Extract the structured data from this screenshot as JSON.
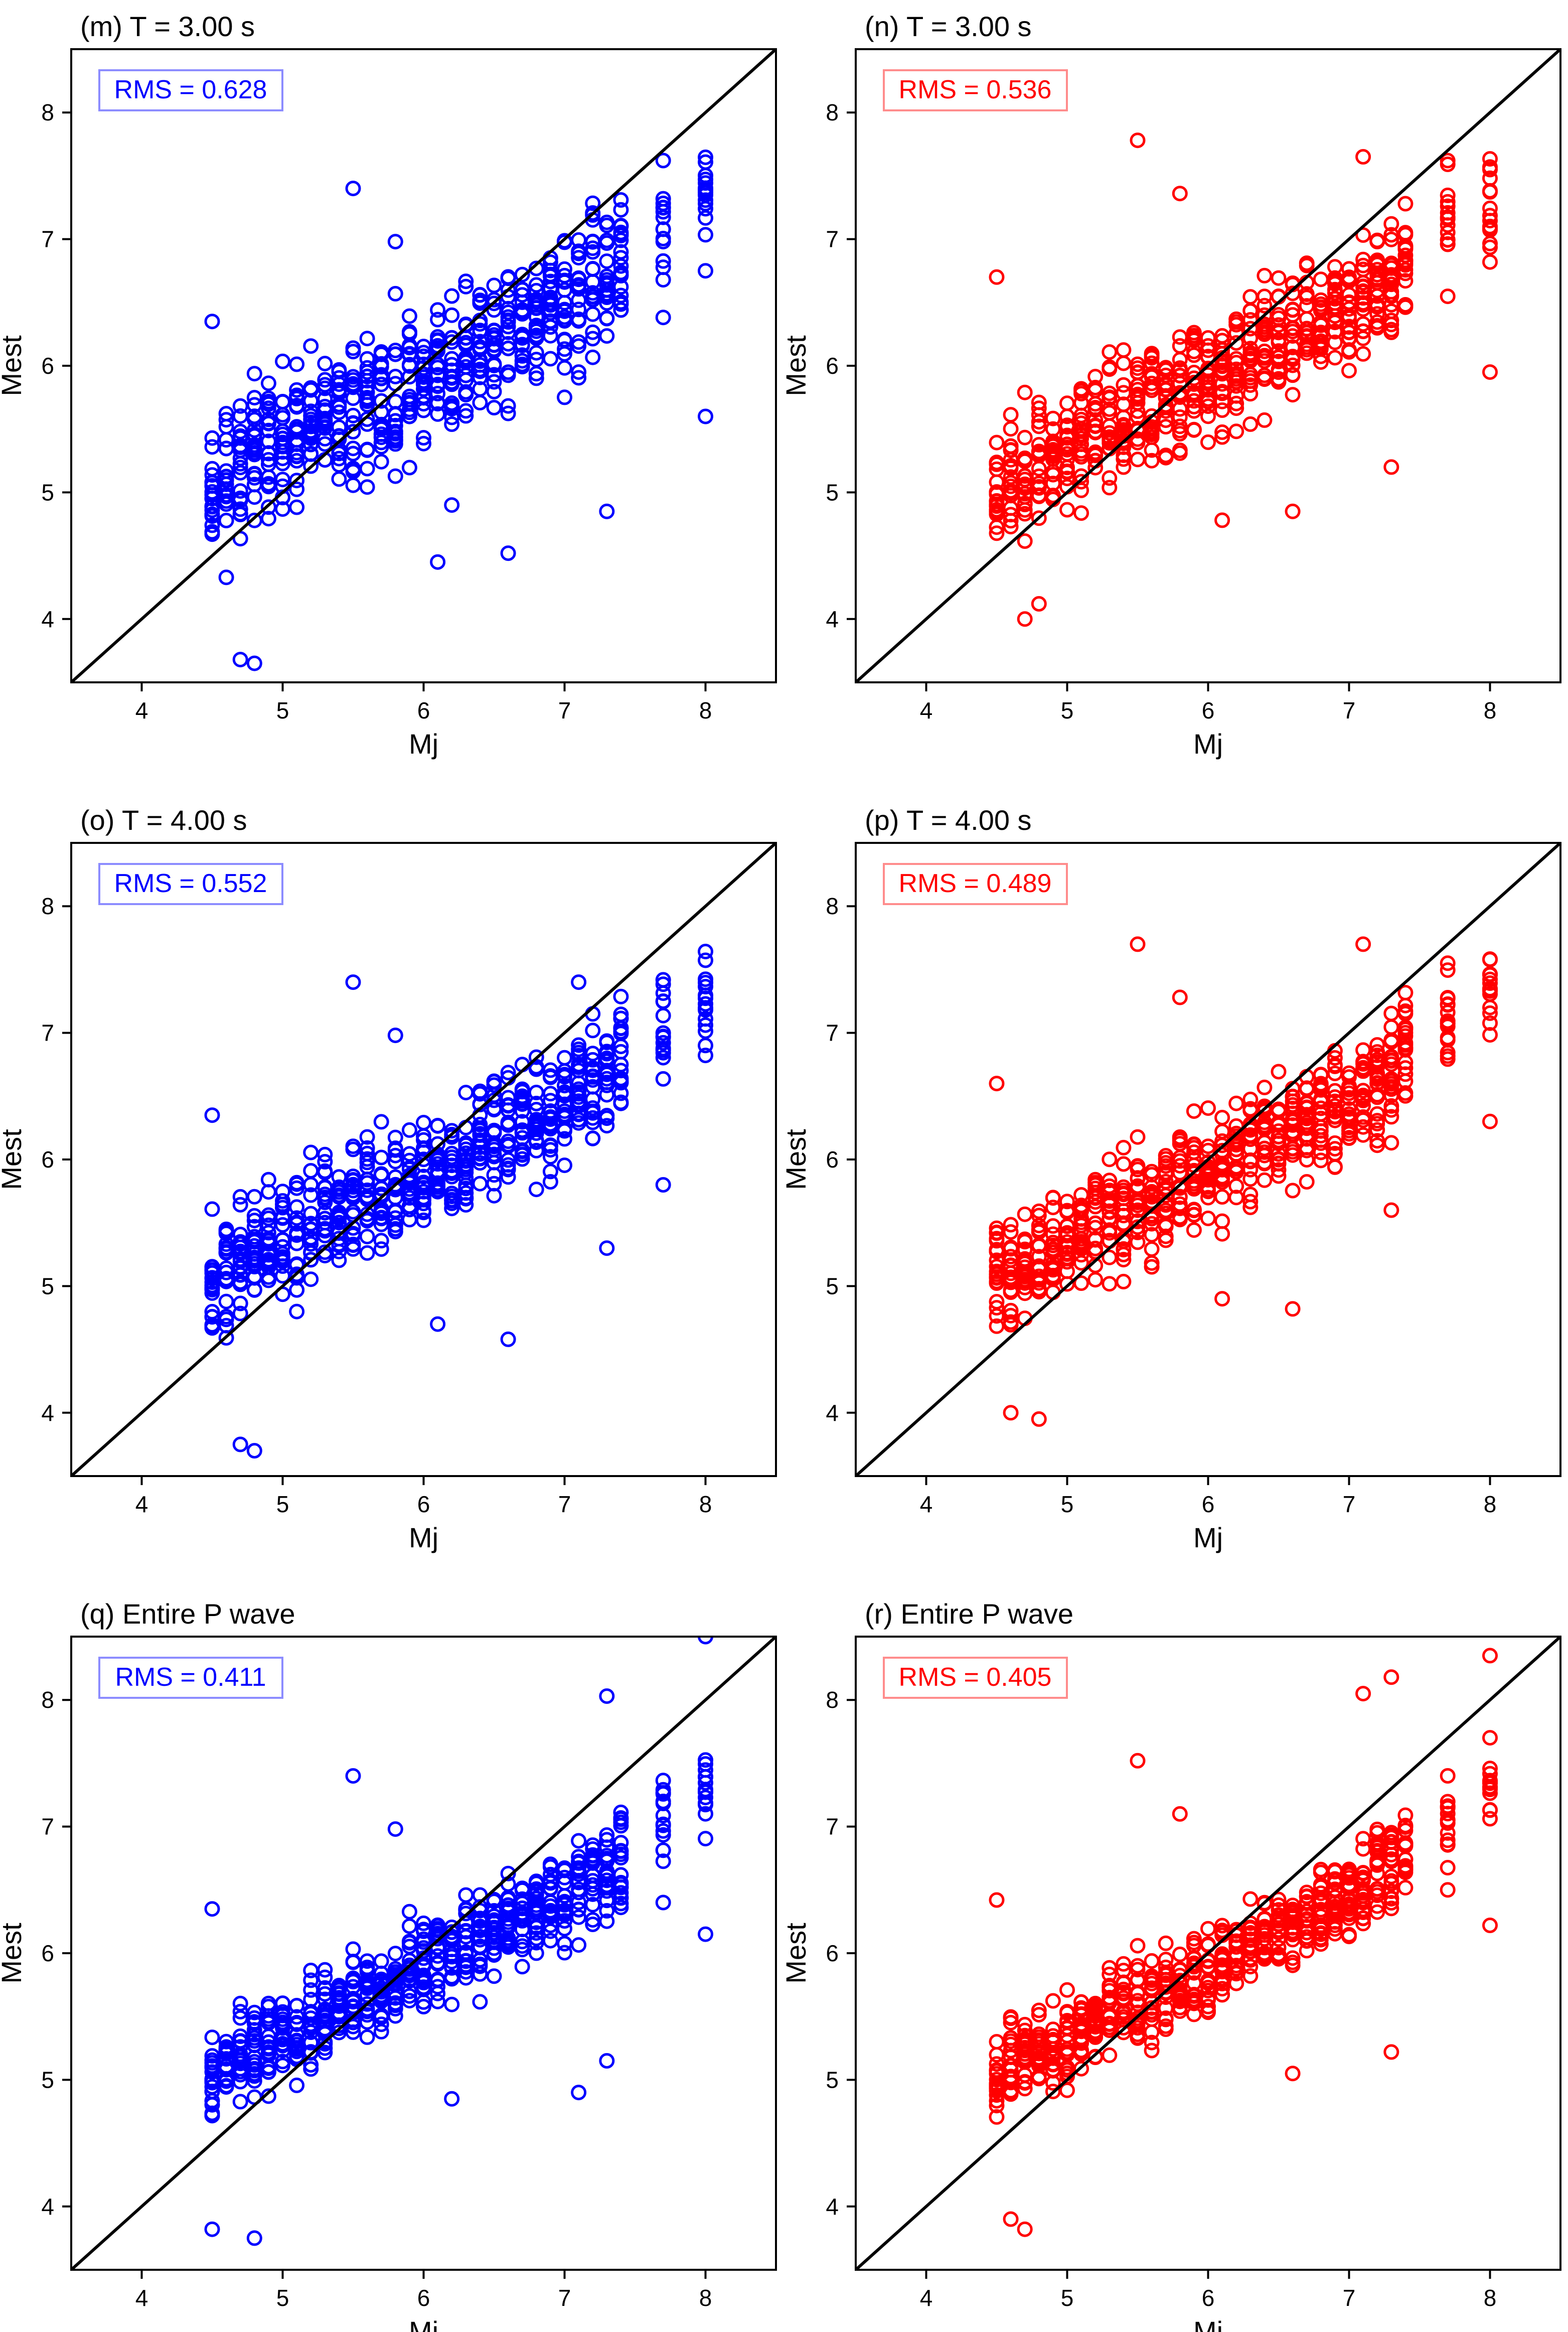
{
  "figure": {
    "xlabel": "Mj",
    "ylabel": "Mest",
    "colors": {
      "blue": "#0000ff",
      "red": "#ff0000",
      "line": "#000000"
    }
  },
  "chart_data": [
    {
      "id": "m",
      "type": "scatter",
      "title": "(m) T = 3.00 s",
      "annotation": "RMS = 0.628",
      "color": "#0000ff",
      "xlabel": "Mj",
      "ylabel": "Mest",
      "xlim": [
        3.5,
        8.5
      ],
      "ylim": [
        3.5,
        8.5
      ],
      "xticks": [
        4,
        5,
        6,
        7,
        8
      ],
      "yticks": [
        4,
        5,
        6,
        7,
        8
      ],
      "reference_line": "y = x",
      "seed": 11,
      "noise": 0.6,
      "extremes": [
        [
          5.5,
          7.4
        ],
        [
          4.5,
          6.35
        ],
        [
          4.7,
          3.68
        ],
        [
          4.8,
          3.65
        ],
        [
          7.7,
          7.25
        ],
        [
          8.0,
          6.75
        ],
        [
          8.0,
          5.6
        ],
        [
          7.3,
          4.85
        ],
        [
          6.6,
          4.52
        ],
        [
          6.1,
          4.45
        ],
        [
          5.8,
          6.98
        ],
        [
          6.2,
          4.9
        ]
      ]
    },
    {
      "id": "n",
      "type": "scatter",
      "title": "(n) T = 3.00 s",
      "annotation": "RMS = 0.536",
      "color": "#ff0000",
      "xlabel": "Mj",
      "ylabel": "Mest",
      "xlim": [
        3.5,
        8.5
      ],
      "ylim": [
        3.5,
        8.5
      ],
      "xticks": [
        4,
        5,
        6,
        7,
        8
      ],
      "yticks": [
        4,
        5,
        6,
        7,
        8
      ],
      "reference_line": "y = x",
      "seed": 23,
      "noise": 0.5,
      "extremes": [
        [
          5.5,
          7.78
        ],
        [
          5.8,
          7.36
        ],
        [
          4.5,
          6.7
        ],
        [
          4.7,
          4.0
        ],
        [
          7.7,
          7.62
        ],
        [
          8.0,
          7.1
        ],
        [
          8.0,
          5.95
        ],
        [
          7.3,
          5.2
        ],
        [
          6.6,
          4.85
        ],
        [
          6.1,
          4.78
        ],
        [
          7.1,
          7.65
        ],
        [
          4.8,
          4.12
        ]
      ]
    },
    {
      "id": "o",
      "type": "scatter",
      "title": "(o) T = 4.00 s",
      "annotation": "RMS = 0.552",
      "color": "#0000ff",
      "xlabel": "Mj",
      "ylabel": "Mest",
      "xlim": [
        3.5,
        8.5
      ],
      "ylim": [
        3.5,
        8.5
      ],
      "xticks": [
        4,
        5,
        6,
        7,
        8
      ],
      "yticks": [
        4,
        5,
        6,
        7,
        8
      ],
      "reference_line": "y = x",
      "seed": 37,
      "noise": 0.5,
      "extremes": [
        [
          5.5,
          7.4
        ],
        [
          4.5,
          6.35
        ],
        [
          4.7,
          3.75
        ],
        [
          4.8,
          3.7
        ],
        [
          7.7,
          7.25
        ],
        [
          8.0,
          6.9
        ],
        [
          7.7,
          5.8
        ],
        [
          7.1,
          7.4
        ],
        [
          6.6,
          4.58
        ],
        [
          6.1,
          4.7
        ],
        [
          5.8,
          6.98
        ],
        [
          7.3,
          5.3
        ]
      ]
    },
    {
      "id": "p",
      "type": "scatter",
      "title": "(p) T = 4.00 s",
      "annotation": "RMS = 0.489",
      "color": "#ff0000",
      "xlabel": "Mj",
      "ylabel": "Mest",
      "xlim": [
        3.5,
        8.5
      ],
      "ylim": [
        3.5,
        8.5
      ],
      "xticks": [
        4,
        5,
        6,
        7,
        8
      ],
      "yticks": [
        4,
        5,
        6,
        7,
        8
      ],
      "reference_line": "y = x",
      "seed": 41,
      "noise": 0.45,
      "extremes": [
        [
          5.5,
          7.7
        ],
        [
          4.5,
          6.6
        ],
        [
          4.8,
          3.95
        ],
        [
          4.6,
          4.0
        ],
        [
          7.7,
          7.55
        ],
        [
          8.0,
          7.2
        ],
        [
          8.0,
          6.3
        ],
        [
          7.1,
          7.7
        ],
        [
          6.6,
          4.82
        ],
        [
          6.1,
          4.9
        ],
        [
          7.3,
          5.6
        ],
        [
          5.8,
          7.28
        ]
      ]
    },
    {
      "id": "q",
      "type": "scatter",
      "title": "(q) Entire P wave",
      "annotation": "RMS = 0.411",
      "color": "#0000ff",
      "xlabel": "Mj",
      "ylabel": "Mest",
      "xlim": [
        3.5,
        8.5
      ],
      "ylim": [
        3.5,
        8.5
      ],
      "xticks": [
        4,
        5,
        6,
        7,
        8
      ],
      "yticks": [
        4,
        5,
        6,
        7,
        8
      ],
      "reference_line": "y = x",
      "seed": 53,
      "noise": 0.38,
      "extremes": [
        [
          5.5,
          7.4
        ],
        [
          8.0,
          8.5
        ],
        [
          8.0,
          6.15
        ],
        [
          7.3,
          8.03
        ],
        [
          4.5,
          6.35
        ],
        [
          4.8,
          3.75
        ],
        [
          4.5,
          3.82
        ],
        [
          7.1,
          4.9
        ],
        [
          7.3,
          5.15
        ],
        [
          6.2,
          4.85
        ],
        [
          5.8,
          6.98
        ],
        [
          7.7,
          6.4
        ]
      ]
    },
    {
      "id": "r",
      "type": "scatter",
      "title": "(r) Entire P wave",
      "annotation": "RMS = 0.405",
      "color": "#ff0000",
      "xlabel": "Mj",
      "ylabel": "Mest",
      "xlim": [
        3.5,
        8.5
      ],
      "ylim": [
        3.5,
        8.5
      ],
      "xticks": [
        4,
        5,
        6,
        7,
        8
      ],
      "yticks": [
        4,
        5,
        6,
        7,
        8
      ],
      "reference_line": "y = x",
      "seed": 67,
      "noise": 0.36,
      "extremes": [
        [
          5.5,
          7.52
        ],
        [
          8.0,
          8.35
        ],
        [
          8.0,
          6.22
        ],
        [
          7.3,
          8.18
        ],
        [
          7.1,
          8.05
        ],
        [
          4.5,
          6.42
        ],
        [
          4.7,
          3.82
        ],
        [
          4.6,
          3.9
        ],
        [
          7.3,
          5.22
        ],
        [
          6.6,
          5.05
        ],
        [
          5.8,
          7.1
        ],
        [
          7.7,
          6.5
        ]
      ]
    }
  ]
}
